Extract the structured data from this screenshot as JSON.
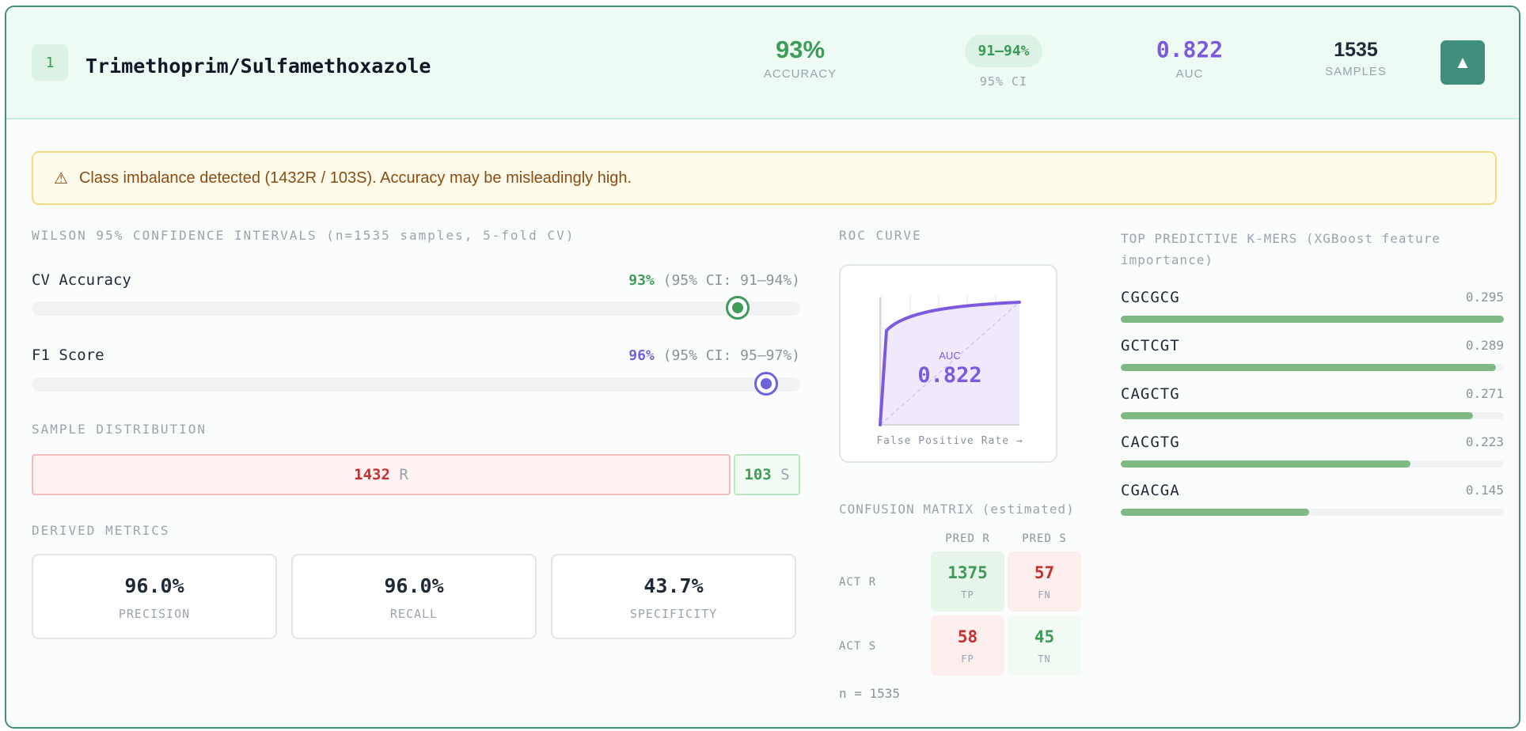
{
  "header": {
    "rank": "1",
    "drug": "Trimethoprim/Sulfamethoxazole",
    "accuracy": "93%",
    "accuracy_label": "ACCURACY",
    "ci": "91–94%",
    "ci_label": "95% CI",
    "auc": "0.822",
    "auc_label": "AUC",
    "samples": "1535",
    "samples_label": "SAMPLES",
    "collapse_icon": "▲"
  },
  "warning": {
    "icon": "⚠",
    "text": "Class imbalance detected (1432R / 103S). Accuracy may be misleadingly high."
  },
  "wilson": {
    "title": "WILSON 95% CONFIDENCE INTERVALS (n=1535 samples, 5-fold CV)",
    "rows": [
      {
        "label": "CV Accuracy",
        "value": "93%",
        "ci": "(95% CI: 91–94%)",
        "fraction": 0.93,
        "color": "#3e9c58"
      },
      {
        "label": "F1 Score",
        "value": "96%",
        "ci": "(95% CI: 95–97%)",
        "fraction": 0.96,
        "color": "#6d64dc"
      }
    ]
  },
  "distribution": {
    "title": "SAMPLE DISTRIBUTION",
    "r_count": "1432",
    "r_label": "R",
    "s_count": "103",
    "s_label": "S"
  },
  "derived": {
    "title": "DERIVED METRICS",
    "metrics": [
      {
        "value": "96.0%",
        "label": "PRECISION"
      },
      {
        "value": "96.0%",
        "label": "RECALL"
      },
      {
        "value": "43.7%",
        "label": "SPECIFICITY"
      }
    ]
  },
  "roc": {
    "title": "ROC CURVE",
    "auc_label": "AUC",
    "auc_value": "0.822",
    "xlabel": "False Positive Rate →"
  },
  "confusion": {
    "title": "CONFUSION MATRIX (estimated)",
    "col_headers": [
      "PRED R",
      "PRED S"
    ],
    "row_headers": [
      "ACT R",
      "ACT S"
    ],
    "cells": [
      {
        "value": "1375",
        "label": "TP"
      },
      {
        "value": "57",
        "label": "FN"
      },
      {
        "value": "58",
        "label": "FP"
      },
      {
        "value": "45",
        "label": "TN"
      }
    ],
    "n": "n = 1535"
  },
  "kmers": {
    "title": "TOP PREDICTIVE K-MERS (XGBoost feature importance)",
    "items": [
      {
        "name": "CGCGCG",
        "value": "0.295",
        "importance": 0.295
      },
      {
        "name": "GCTCGT",
        "value": "0.289",
        "importance": 0.289
      },
      {
        "name": "CAGCTG",
        "value": "0.271",
        "importance": 0.271
      },
      {
        "name": "CACGTG",
        "value": "0.223",
        "importance": 0.223
      },
      {
        "name": "CGACGA",
        "value": "0.145",
        "importance": 0.145
      }
    ]
  }
}
